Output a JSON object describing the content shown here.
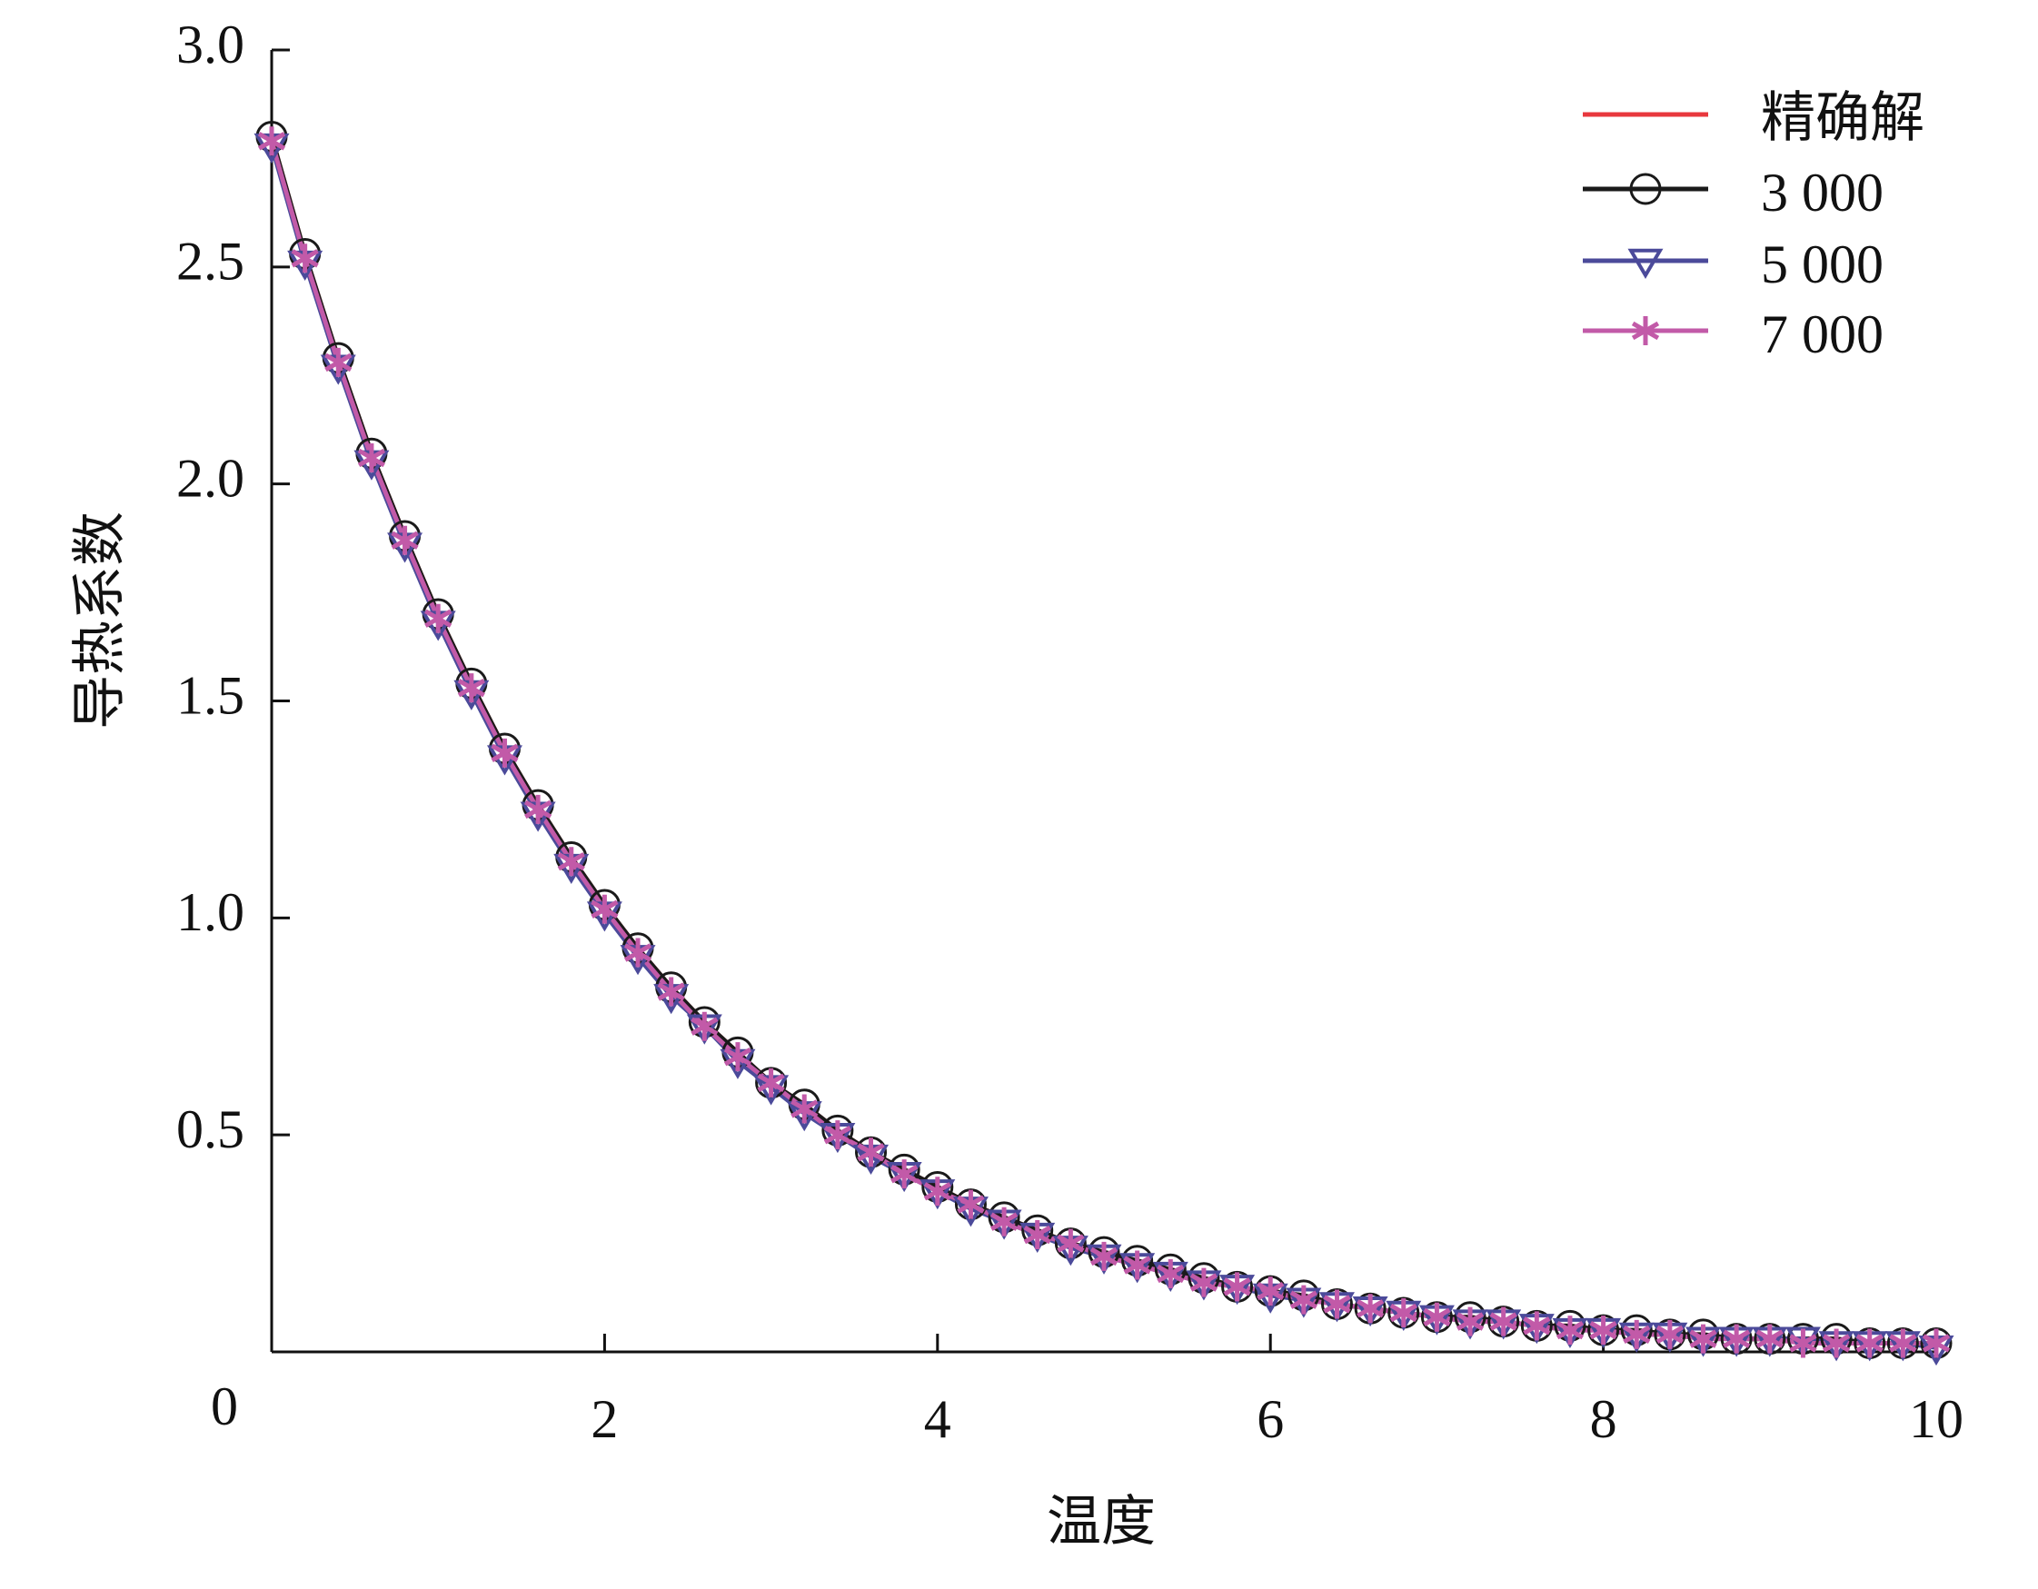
{
  "chart_data": {
    "type": "line",
    "xlabel": "温度",
    "ylabel": "导热系数",
    "x": [
      0,
      0.2,
      0.4,
      0.6,
      0.8,
      1,
      1.2,
      1.4,
      1.6,
      1.8,
      2,
      2.2,
      2.4,
      2.6,
      2.8,
      3,
      3.2,
      3.4,
      3.6,
      3.8,
      4,
      4.2,
      4.4,
      4.6,
      4.8,
      5,
      5.2,
      5.4,
      5.6,
      5.8,
      6,
      6.2,
      6.4,
      6.6,
      6.8,
      7,
      7.2,
      7.4,
      7.6,
      7.8,
      8,
      8.2,
      8.4,
      8.6,
      8.8,
      9,
      9.2,
      9.4,
      9.6,
      9.8,
      10
    ],
    "series": [
      {
        "name": "精确解",
        "color": "#e8383d",
        "marker": "none",
        "values": [
          2.8,
          2.53,
          2.29,
          2.07,
          1.88,
          1.7,
          1.54,
          1.39,
          1.26,
          1.14,
          1.03,
          0.93,
          0.84,
          0.76,
          0.69,
          0.62,
          0.57,
          0.51,
          0.46,
          0.42,
          0.38,
          0.34,
          0.31,
          0.28,
          0.25,
          0.23,
          0.21,
          0.19,
          0.17,
          0.15,
          0.14,
          0.13,
          0.11,
          0.1,
          0.09,
          0.08,
          0.08,
          0.07,
          0.06,
          0.06,
          0.05,
          0.05,
          0.04,
          0.04,
          0.03,
          0.03,
          0.03,
          0.03,
          0.02,
          0.02,
          0.02
        ]
      },
      {
        "name": "3 000",
        "color": "#1a1a1a",
        "marker": "circle",
        "values": [
          2.8,
          2.53,
          2.29,
          2.07,
          1.88,
          1.7,
          1.54,
          1.39,
          1.26,
          1.14,
          1.03,
          0.93,
          0.84,
          0.76,
          0.69,
          0.62,
          0.57,
          0.51,
          0.46,
          0.42,
          0.38,
          0.34,
          0.31,
          0.28,
          0.25,
          0.23,
          0.21,
          0.19,
          0.17,
          0.15,
          0.14,
          0.13,
          0.11,
          0.1,
          0.09,
          0.08,
          0.08,
          0.07,
          0.06,
          0.06,
          0.05,
          0.05,
          0.04,
          0.04,
          0.03,
          0.03,
          0.03,
          0.03,
          0.02,
          0.02,
          0.02
        ]
      },
      {
        "name": "5 000",
        "color": "#4b4a9a",
        "marker": "triangle-down",
        "values": [
          2.78,
          2.51,
          2.27,
          2.05,
          1.86,
          1.68,
          1.52,
          1.37,
          1.24,
          1.12,
          1.01,
          0.91,
          0.82,
          0.75,
          0.67,
          0.61,
          0.55,
          0.5,
          0.45,
          0.41,
          0.37,
          0.33,
          0.3,
          0.27,
          0.24,
          0.22,
          0.2,
          0.18,
          0.16,
          0.15,
          0.13,
          0.12,
          0.11,
          0.1,
          0.09,
          0.08,
          0.07,
          0.07,
          0.06,
          0.05,
          0.05,
          0.04,
          0.04,
          0.03,
          0.03,
          0.03,
          0.03,
          0.02,
          0.02,
          0.02,
          0.01
        ]
      },
      {
        "name": "7 000",
        "color": "#c25aa8",
        "marker": "asterisk",
        "values": [
          2.79,
          2.52,
          2.28,
          2.06,
          1.87,
          1.69,
          1.53,
          1.38,
          1.25,
          1.13,
          1.02,
          0.92,
          0.83,
          0.75,
          0.68,
          0.62,
          0.56,
          0.5,
          0.46,
          0.41,
          0.37,
          0.34,
          0.3,
          0.27,
          0.25,
          0.22,
          0.2,
          0.18,
          0.16,
          0.15,
          0.14,
          0.12,
          0.11,
          0.1,
          0.09,
          0.08,
          0.07,
          0.07,
          0.06,
          0.05,
          0.05,
          0.04,
          0.04,
          0.03,
          0.03,
          0.03,
          0.02,
          0.02,
          0.02,
          0.02,
          0.02
        ]
      }
    ],
    "xlim": [
      0,
      10
    ],
    "ylim": [
      0,
      3
    ],
    "xticks": [
      0,
      2,
      4,
      6,
      8,
      10
    ],
    "yticks": [
      0.5,
      {
        "value": 1,
        "label": "1.0"
      },
      1.5,
      {
        "value": 2,
        "label": "2.0"
      },
      2.5,
      {
        "value": 3,
        "label": "3.0"
      }
    ],
    "legend": "upper right",
    "grid": false
  }
}
